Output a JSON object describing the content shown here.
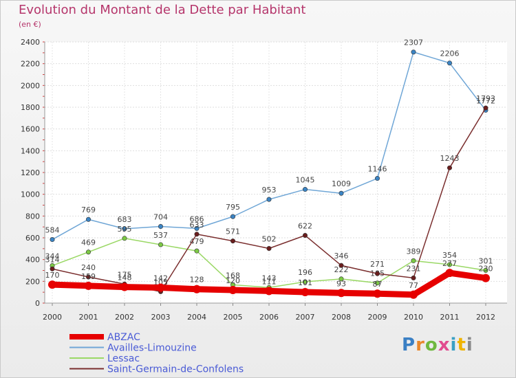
{
  "header": {
    "title": "Evolution du Montant de la Dette par Habitant",
    "subtitle": "(en €)"
  },
  "brand": {
    "text": "Proxiti",
    "letter_colors": [
      "#3a7fc4",
      "#e8872b",
      "#6fb83f",
      "#e14b8f",
      "#3aa0c4",
      "#f0b400",
      "#8a8a8a"
    ]
  },
  "chart_data": {
    "type": "line",
    "x": [
      "2000",
      "2001",
      "2002",
      "2003",
      "2004",
      "2005",
      "2006",
      "2007",
      "2008",
      "2009",
      "2010",
      "2011",
      "2012"
    ],
    "ylim": [
      0,
      2400
    ],
    "yticks": [
      "0",
      "200",
      "400",
      "600",
      "800",
      "1000",
      "1200",
      "1400",
      "1600",
      "1800",
      "2000",
      "2200",
      "2400"
    ],
    "grid": true,
    "legend_position": "bottom-left",
    "series": [
      {
        "name": "Availles-Limouzine",
        "color": "#6fa6d6",
        "marker": "#3b84c4",
        "values": [
          584,
          769,
          683,
          704,
          686,
          795,
          953,
          1045,
          1009,
          1146,
          2307,
          2206,
          1772
        ],
        "labels": [
          "584",
          "769",
          "683",
          "704",
          "686",
          "795",
          "953",
          "1045",
          "1009",
          "1146",
          "2307",
          "2206",
          "1772"
        ]
      },
      {
        "name": "Lessac",
        "color": "#9ad865",
        "marker": "#7cc944",
        "values": [
          344,
          469,
          595,
          537,
          479,
          168,
          143,
          196,
          222,
          185,
          389,
          354,
          301
        ],
        "labels": [
          "344",
          "469",
          "595",
          "537",
          "479",
          "168",
          "143",
          "196",
          "222",
          "185",
          "389",
          "354",
          "301"
        ]
      },
      {
        "name": "Saint-Germain-de-Confolens",
        "color": "#7a2e2e",
        "marker": "#6a1e1e",
        "values": [
          314,
          240,
          175,
          105,
          633,
          571,
          502,
          622,
          346,
          271,
          231,
          1243,
          1793
        ],
        "labels": [
          "314",
          "240",
          "175",
          "105",
          "633",
          "571",
          "502",
          "622",
          "346",
          "271",
          "231",
          "1243",
          "1793"
        ]
      },
      {
        "name": "ABZAC",
        "color": "#e60000",
        "marker": "#e60000",
        "values": [
          170,
          159,
          148,
          142,
          128,
          120,
          111,
          101,
          93,
          87,
          77,
          277,
          230
        ],
        "labels": [
          "170",
          "159",
          "148",
          "142",
          "128",
          "120",
          "111",
          "101",
          "93",
          "87",
          "77",
          "277",
          "230"
        ]
      }
    ],
    "legend": [
      {
        "name": "ABZAC",
        "color": "#e60000"
      },
      {
        "name": "Availles-Limouzine",
        "color": "#6fa6d6"
      },
      {
        "name": "Lessac",
        "color": "#9ad865"
      },
      {
        "name": "Saint-Germain-de-Confolens",
        "color": "#7a2e2e"
      }
    ]
  }
}
